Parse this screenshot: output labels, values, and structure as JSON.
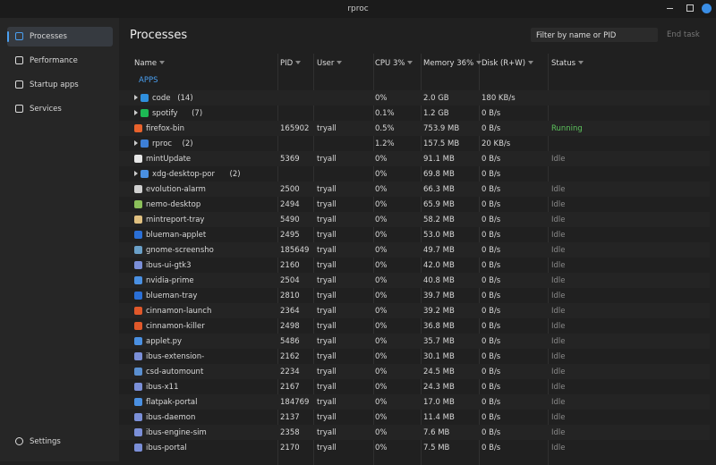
{
  "window": {
    "title": "rproc"
  },
  "sidebar": {
    "items": [
      "Processes",
      "Performance",
      "Startup apps",
      "Services"
    ],
    "active": 0,
    "settings": "Settings"
  },
  "header": {
    "title": "Processes",
    "search_placeholder": "Filter by name or PID",
    "button": "End task"
  },
  "table": {
    "columns": [
      "Name",
      "PID",
      "User",
      "CPU 3%",
      "Memory 36%",
      "Disk (R+W)",
      "Status"
    ],
    "section": "APPS",
    "rows": [
      {
        "name": "code",
        "count": "(14)",
        "expandable": true,
        "icon": "#2f8fdd",
        "cpu": "0%",
        "memory": "2.0 GB",
        "disk": "180 KB/s"
      },
      {
        "name": "spotify",
        "count": "(7)",
        "expandable": true,
        "icon": "#1db954",
        "cpu": "0.1%",
        "memory": "1.2 GB",
        "disk": "0 B/s"
      },
      {
        "name": "firefox-bin",
        "icon": "#e8622c",
        "pid": "165902",
        "user": "tryall",
        "cpu": "0.5%",
        "memory": "753.9 MB",
        "disk": "0 B/s",
        "status": "Running"
      },
      {
        "name": "rproc",
        "count": "(2)",
        "expandable": true,
        "icon": "#3d7fd6",
        "cpu": "1.2%",
        "memory": "157.5 MB",
        "disk": "20 KB/s"
      },
      {
        "name": "mintUpdate",
        "icon": "#e6e6e6",
        "pid": "5369",
        "user": "tryall",
        "cpu": "0%",
        "memory": "91.1 MB",
        "disk": "0 B/s",
        "status": "Idle"
      },
      {
        "name": "xdg-desktop-por",
        "count": "(2)",
        "expandable": true,
        "icon": "#4a90e2",
        "cpu": "0%",
        "memory": "69.8 MB",
        "disk": "0 B/s"
      },
      {
        "name": "evolution-alarm",
        "icon": "#d0d0d0",
        "pid": "2500",
        "user": "tryall",
        "cpu": "0%",
        "memory": "66.3 MB",
        "disk": "0 B/s",
        "status": "Idle"
      },
      {
        "name": "nemo-desktop",
        "icon": "#8bbf5a",
        "pid": "2494",
        "user": "tryall",
        "cpu": "0%",
        "memory": "65.9 MB",
        "disk": "0 B/s",
        "status": "Idle"
      },
      {
        "name": "mintreport-tray",
        "icon": "#e0c080",
        "pid": "5490",
        "user": "tryall",
        "cpu": "0%",
        "memory": "58.2 MB",
        "disk": "0 B/s",
        "status": "Idle"
      },
      {
        "name": "blueman-applet",
        "icon": "#2a6fd6",
        "pid": "2495",
        "user": "tryall",
        "cpu": "0%",
        "memory": "53.0 MB",
        "disk": "0 B/s",
        "status": "Idle"
      },
      {
        "name": "gnome-screensho",
        "icon": "#6aa0c8",
        "pid": "185649",
        "user": "tryall",
        "cpu": "0%",
        "memory": "49.7 MB",
        "disk": "0 B/s",
        "status": "Idle"
      },
      {
        "name": "ibus-ui-gtk3",
        "icon": "#7b8fd8",
        "pid": "2160",
        "user": "tryall",
        "cpu": "0%",
        "memory": "42.0 MB",
        "disk": "0 B/s",
        "status": "Idle"
      },
      {
        "name": "nvidia-prime",
        "icon": "#4a90e2",
        "pid": "2504",
        "user": "tryall",
        "cpu": "0%",
        "memory": "40.8 MB",
        "disk": "0 B/s",
        "status": "Idle"
      },
      {
        "name": "blueman-tray",
        "icon": "#2a6fd6",
        "pid": "2810",
        "user": "tryall",
        "cpu": "0%",
        "memory": "39.7 MB",
        "disk": "0 B/s",
        "status": "Idle"
      },
      {
        "name": "cinnamon-launch",
        "icon": "#e0582a",
        "pid": "2364",
        "user": "tryall",
        "cpu": "0%",
        "memory": "39.2 MB",
        "disk": "0 B/s",
        "status": "Idle"
      },
      {
        "name": "cinnamon-killer",
        "icon": "#e0582a",
        "pid": "2498",
        "user": "tryall",
        "cpu": "0%",
        "memory": "36.8 MB",
        "disk": "0 B/s",
        "status": "Idle"
      },
      {
        "name": "applet.py",
        "icon": "#4a90e2",
        "pid": "5486",
        "user": "tryall",
        "cpu": "0%",
        "memory": "35.7 MB",
        "disk": "0 B/s",
        "status": "Idle"
      },
      {
        "name": "ibus-extension-",
        "icon": "#7b8fd8",
        "pid": "2162",
        "user": "tryall",
        "cpu": "0%",
        "memory": "30.1 MB",
        "disk": "0 B/s",
        "status": "Idle"
      },
      {
        "name": "csd-automount",
        "icon": "#5a8fd0",
        "pid": "2234",
        "user": "tryall",
        "cpu": "0%",
        "memory": "24.5 MB",
        "disk": "0 B/s",
        "status": "Idle"
      },
      {
        "name": "ibus-x11",
        "icon": "#7b8fd8",
        "pid": "2167",
        "user": "tryall",
        "cpu": "0%",
        "memory": "24.3 MB",
        "disk": "0 B/s",
        "status": "Idle"
      },
      {
        "name": "flatpak-portal",
        "icon": "#4a90e2",
        "pid": "184769",
        "user": "tryall",
        "cpu": "0%",
        "memory": "17.0 MB",
        "disk": "0 B/s",
        "status": "Idle"
      },
      {
        "name": "ibus-daemon",
        "icon": "#7b8fd8",
        "pid": "2137",
        "user": "tryall",
        "cpu": "0%",
        "memory": "11.4 MB",
        "disk": "0 B/s",
        "status": "Idle"
      },
      {
        "name": "ibus-engine-sim",
        "icon": "#7b8fd8",
        "pid": "2358",
        "user": "tryall",
        "cpu": "0%",
        "memory": "7.6 MB",
        "disk": "0 B/s",
        "status": "Idle"
      },
      {
        "name": "ibus-portal",
        "icon": "#7b8fd8",
        "pid": "2170",
        "user": "tryall",
        "cpu": "0%",
        "memory": "7.5 MB",
        "disk": "0 B/s",
        "status": "Idle"
      }
    ]
  }
}
